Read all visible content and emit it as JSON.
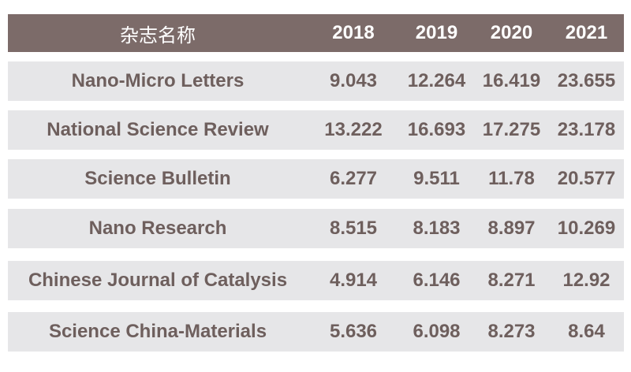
{
  "table": {
    "headers": [
      "杂志名称",
      "2018",
      "2019",
      "2020",
      "2021"
    ],
    "rows": [
      {
        "name": "Nano-Micro Letters",
        "values": [
          "9.043",
          "12.264",
          "16.419",
          "23.655"
        ]
      },
      {
        "name": "National Science Review",
        "values": [
          "13.222",
          "16.693",
          "17.275",
          "23.178"
        ]
      },
      {
        "name": "Science Bulletin",
        "values": [
          "6.277",
          "9.511",
          "11.78",
          "20.577"
        ]
      },
      {
        "name": "Nano Research",
        "values": [
          "8.515",
          "8.183",
          "8.897",
          "10.269"
        ]
      },
      {
        "name": "Chinese Journal of Catalysis",
        "values": [
          "4.914",
          "6.146",
          "8.271",
          "12.92"
        ]
      },
      {
        "name": "Science China-Materials",
        "values": [
          "5.636",
          "6.098",
          "8.273",
          "8.64"
        ]
      }
    ]
  },
  "colors": {
    "header_bg": "#7c6b69",
    "header_text": "#ffffff",
    "row_bg": "#e6e6e8",
    "cell_text": "#6e5f5d"
  }
}
